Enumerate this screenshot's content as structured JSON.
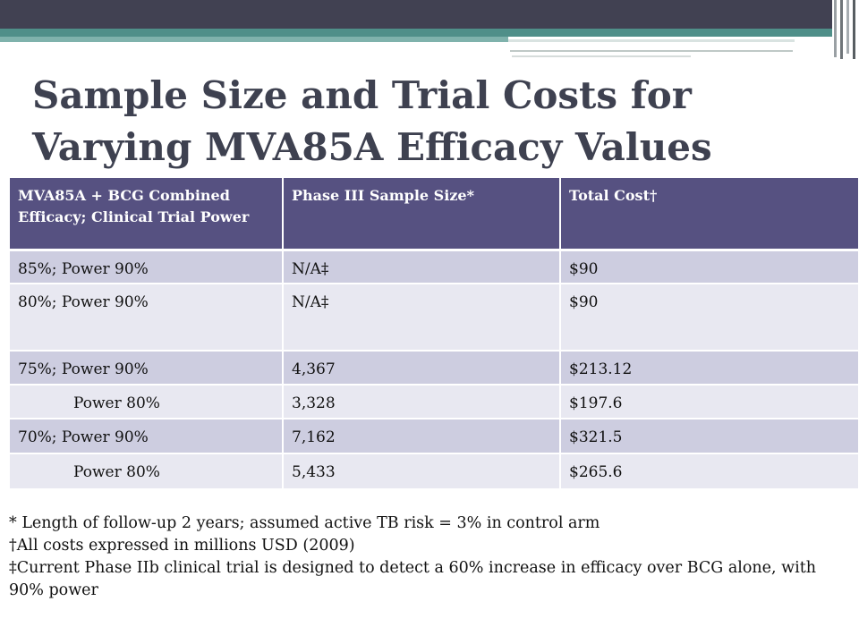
{
  "title": "Sample Size and Trial Costs for Varying MVA85A Efficacy Values",
  "colors": {
    "header_bar": "#414152",
    "teal_bar": "#4f8f89",
    "table_header": "#565181",
    "row_dark": "#cdcde0",
    "row_light": "#e8e8f1",
    "title_text": "#3e4150"
  },
  "table": {
    "headers": [
      "MVA85A + BCG Combined Efficacy; Clinical Trial Power",
      "Phase III Sample Size*",
      "Total Cost†"
    ],
    "rows": [
      [
        "85%; Power 90%",
        "N/A‡",
        "$90"
      ],
      [
        "80%; Power 90%",
        "N/A‡",
        "$90"
      ],
      [
        "75%; Power 90%",
        "4,367",
        "$213.12"
      ],
      [
        "Power 80%",
        "3,328",
        "$197.6"
      ],
      [
        "70%; Power 90%",
        "7,162",
        "$321.5"
      ],
      [
        "Power 80%",
        "5,433",
        "$265.6"
      ]
    ]
  },
  "footnotes": [
    "* Length of follow-up 2 years; assumed active TB risk = 3% in control arm",
    "†All costs expressed in millions USD  (2009)",
    "‡Current Phase IIb clinical trial is designed to detect a 60% increase in efficacy over BCG alone, with 90% power"
  ]
}
